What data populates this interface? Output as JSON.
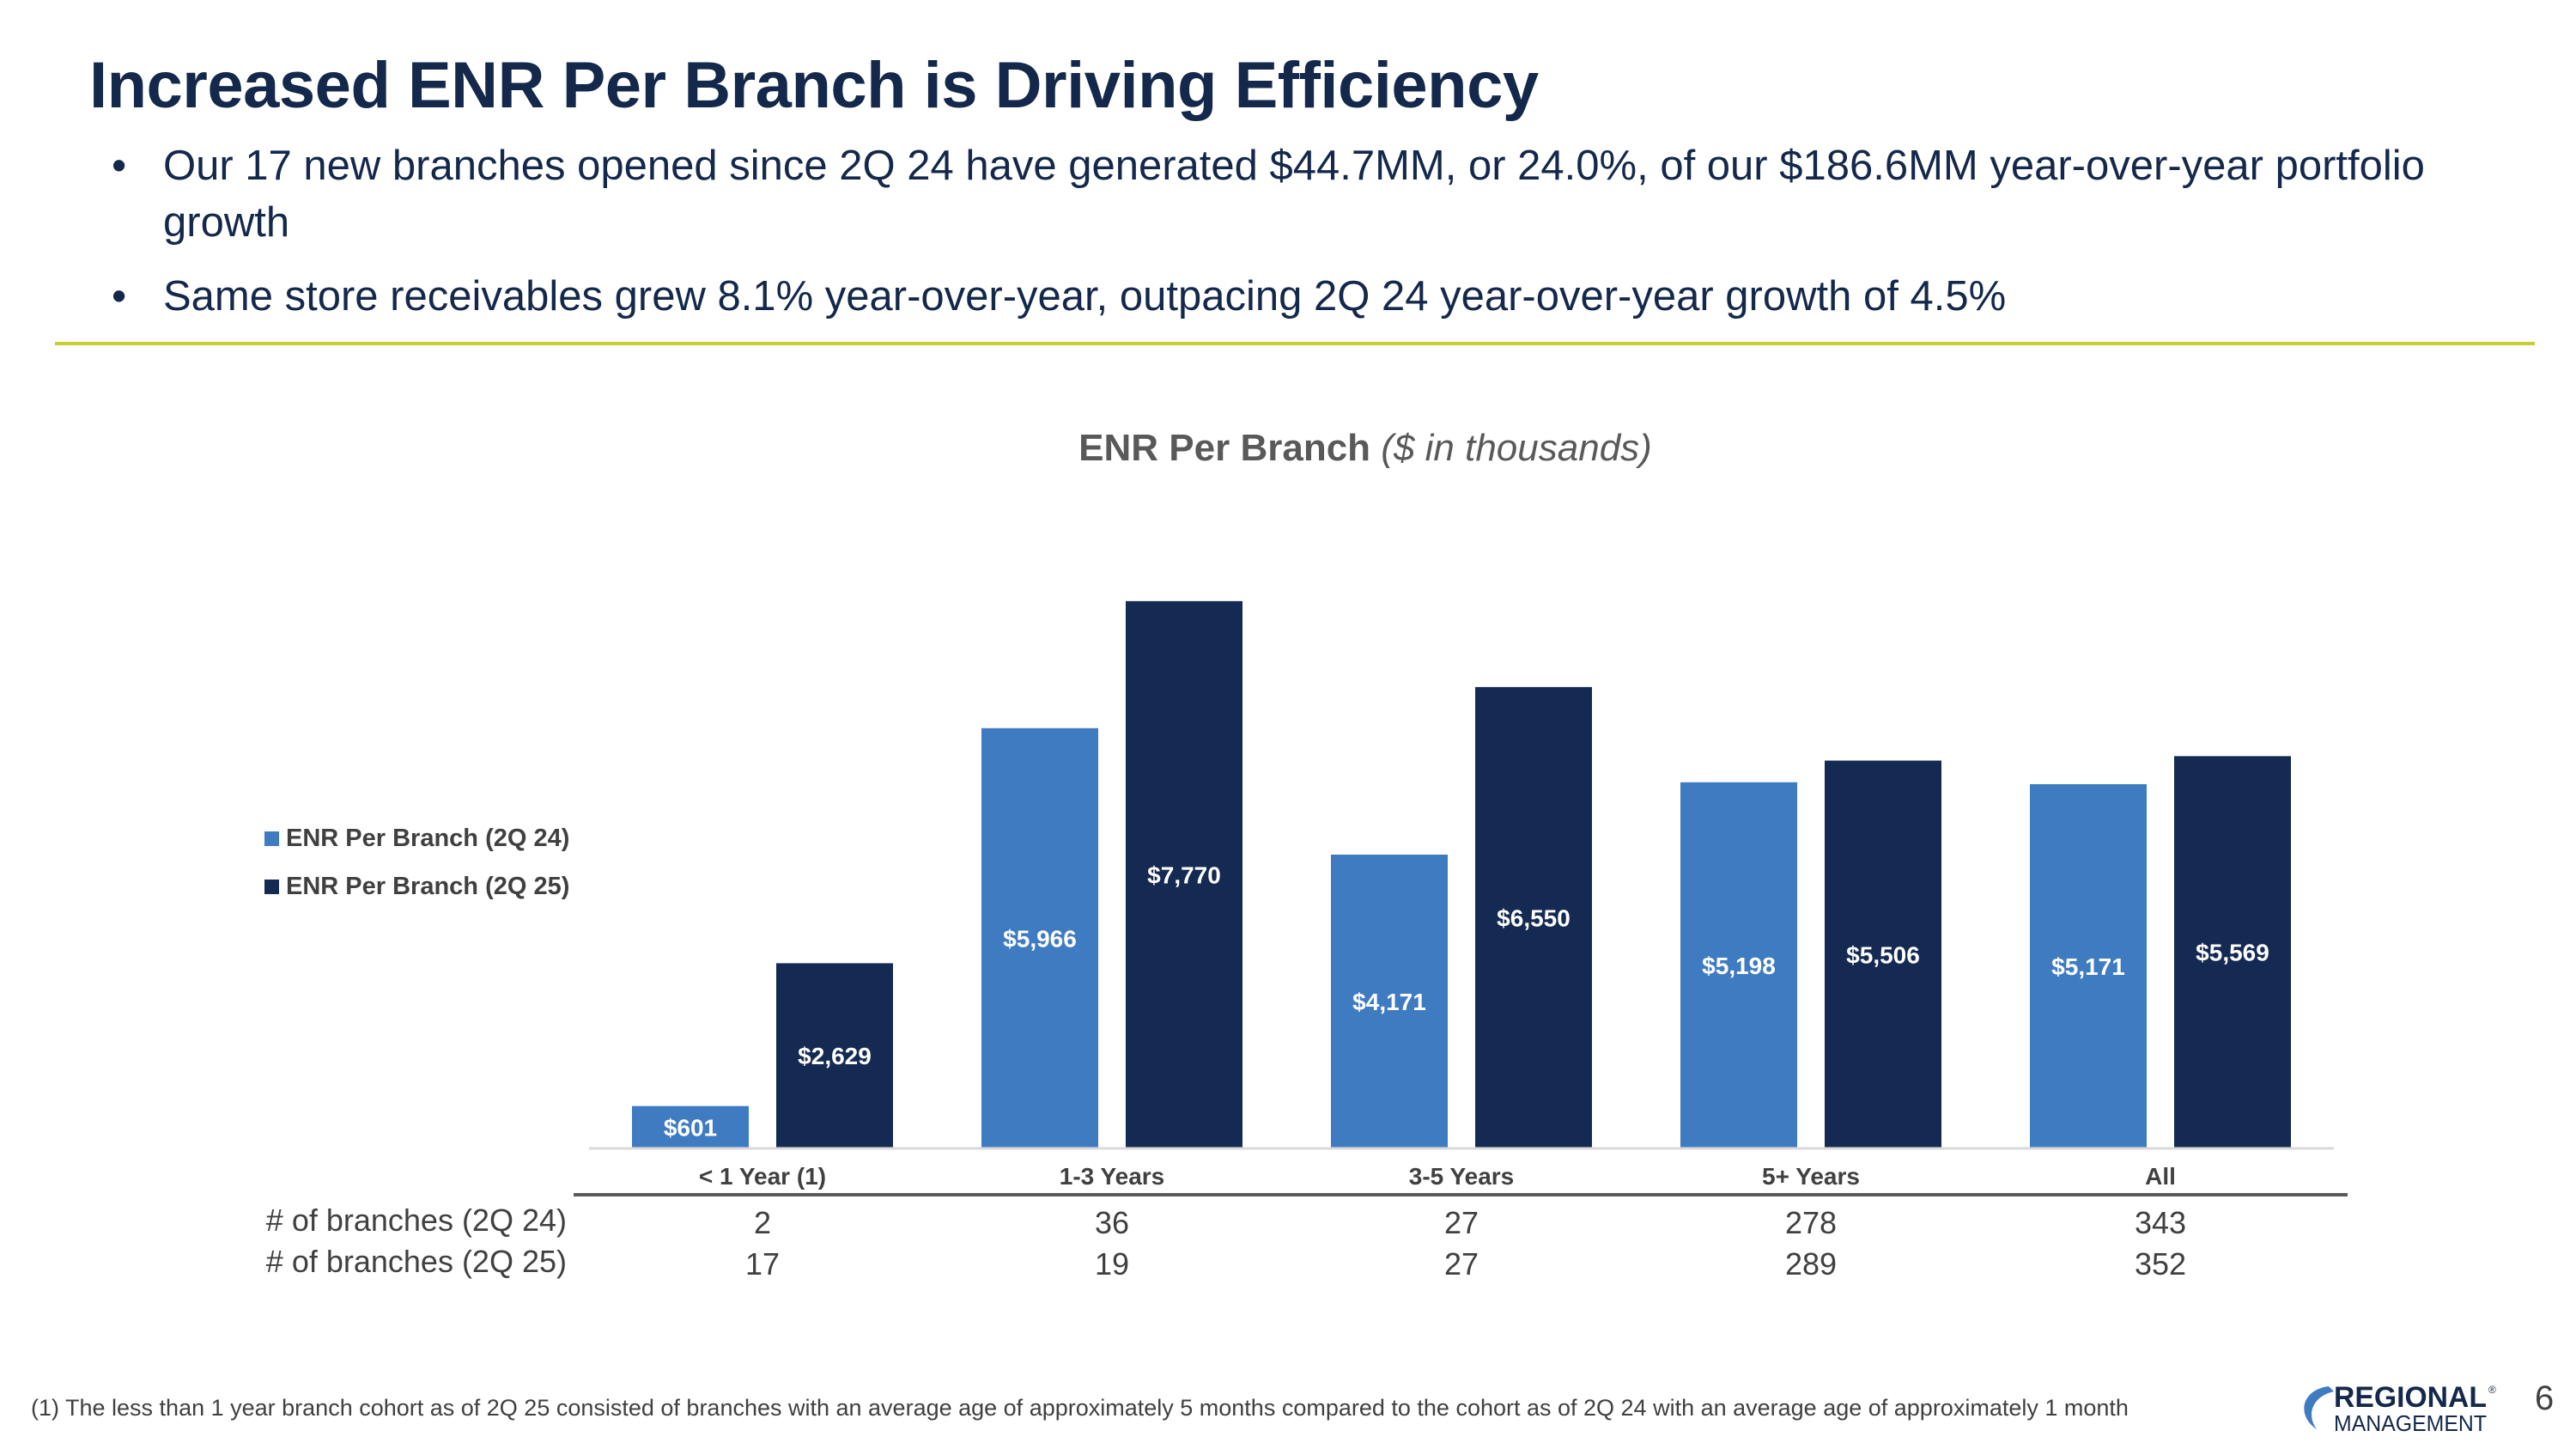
{
  "slide": {
    "title": "Increased ENR Per Branch is Driving Efficiency",
    "bullets": [
      "Our 17 new branches opened since 2Q 24 have generated $44.7MM, or 24.0%, of our $186.6MM year-over-year portfolio growth",
      "Same store receivables grew 8.1% year-over-year, outpacing 2Q 24 year-over-year growth of 4.5%"
    ],
    "footnote": "(1) The less than 1 year branch cohort as of 2Q 25 consisted of branches with an average age of approximately 5 months compared to the cohort as of 2Q 24 with an average age of approximately 1 month",
    "page_number": "6",
    "logo": {
      "line1": "REGIONAL",
      "line2": "MANAGEMENT",
      "registered": "®"
    }
  },
  "chart_data": {
    "type": "bar",
    "title": "ENR Per Branch",
    "subtitle": "($ in thousands)",
    "categories": [
      "< 1 Year (1)",
      "1-3 Years",
      "3-5 Years",
      "5+ Years",
      "All"
    ],
    "series": [
      {
        "name": "ENR Per Branch (2Q 24)",
        "color": "#3f7bc1",
        "values": [
          601,
          5966,
          4171,
          5198,
          5171
        ],
        "labels": [
          "$601",
          "$5,966",
          "$4,171",
          "$5,198",
          "$5,171"
        ]
      },
      {
        "name": "ENR Per Branch (2Q 25)",
        "color": "#142a52",
        "values": [
          2629,
          7770,
          6550,
          5506,
          5569
        ],
        "labels": [
          "$2,629",
          "$7,770",
          "$6,550",
          "$5,506",
          "$5,569"
        ]
      }
    ],
    "ylim": [
      0,
      8000
    ],
    "grid": false,
    "legend": "left",
    "table": {
      "rows": [
        {
          "label": "# of branches (2Q 24)",
          "values": [
            "2",
            "36",
            "27",
            "278",
            "343"
          ]
        },
        {
          "label": "# of branches (2Q 25)",
          "values": [
            "17",
            "19",
            "27",
            "289",
            "352"
          ]
        }
      ]
    }
  }
}
